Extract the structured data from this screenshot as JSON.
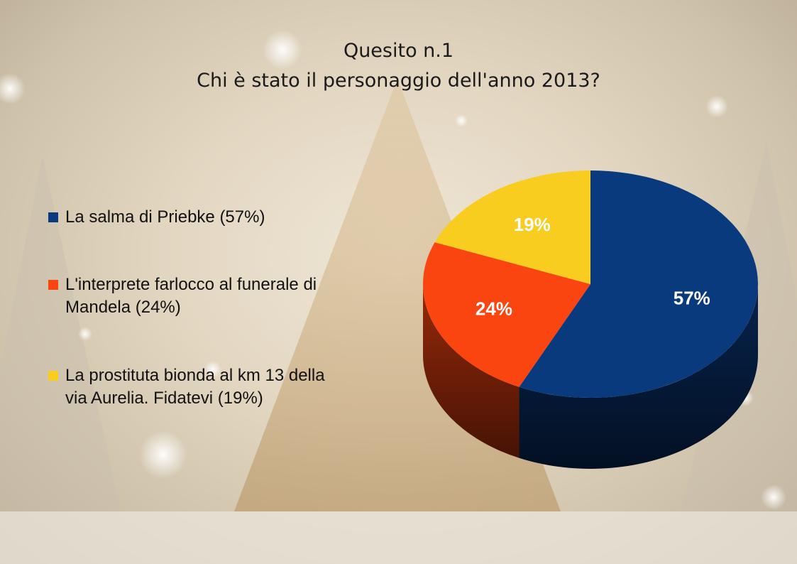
{
  "chart_data": {
    "type": "pie",
    "title": "Quesito n.1",
    "subtitle": "Chi è stato il personaggio dell'anno 2013?",
    "legend_position": "left",
    "slices": [
      {
        "label": "La salma di Priebke (57%)",
        "value": 57,
        "data_label": "57%",
        "color": "#0a3a7e"
      },
      {
        "label": "L'interprete farlocco al funerale di Mandela (24%)",
        "value": 24,
        "data_label": "24%",
        "color": "#fb4510"
      },
      {
        "label": "La prostituta bionda al km 13 della via Aurelia. Fidatevi (19%)",
        "value": 19,
        "data_label": "19%",
        "color": "#f8cd1f"
      }
    ]
  },
  "legend": {
    "items": [
      {
        "line1": "La salma di Priebke (57%)",
        "line2": ""
      },
      {
        "line1": "L'interprete farlocco al funerale di",
        "line2": "Mandela (24%)"
      },
      {
        "line1": "La prostituta bionda al km 13 della",
        "line2": "via Aurelia. Fidatevi (19%)"
      }
    ]
  }
}
